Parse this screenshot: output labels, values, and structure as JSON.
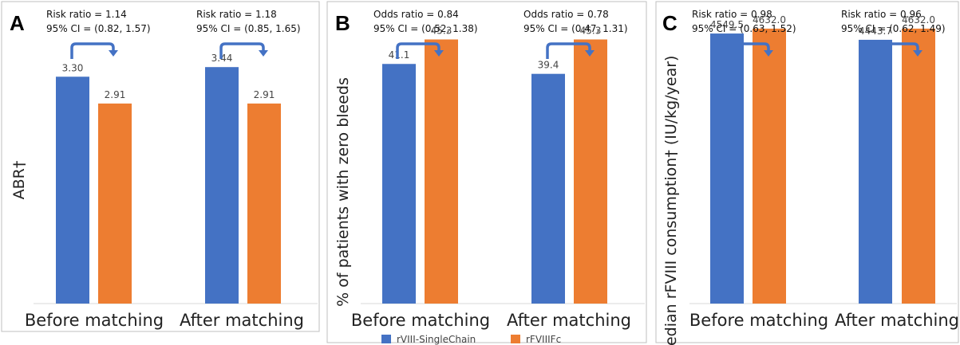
{
  "colors": {
    "series1": "#4472c4",
    "series2": "#ed7d31",
    "arrow": "#4472c4"
  },
  "legend": {
    "placement": "bottom-center",
    "items": [
      {
        "label": "rVIII-SingleChain",
        "color": "#4472c4"
      },
      {
        "label": "rFVIIIFc",
        "color": "#ed7d31"
      }
    ]
  },
  "chart_data": [
    {
      "panel": "A",
      "type": "bar",
      "ylabel": "ABR†",
      "categories": [
        "Before matching",
        "After matching"
      ],
      "ylim": [
        0,
        4.3
      ],
      "series": [
        {
          "name": "rVIII-SingleChain",
          "values": [
            3.3,
            3.44
          ],
          "labels": [
            "3.30",
            "3.44"
          ]
        },
        {
          "name": "rFVIIIFc",
          "values": [
            2.91,
            2.91
          ],
          "labels": [
            "2.91",
            "2.91"
          ]
        }
      ],
      "annotations": [
        {
          "line1": "Risk ratio = 1.14",
          "line2": "95% CI = (0.82, 1.57)"
        },
        {
          "line1": "Risk ratio = 1.18",
          "line2": "95% CI = (0.85, 1.65)"
        }
      ]
    },
    {
      "panel": "B",
      "type": "bar",
      "ylabel": "% of patients with zero bleeds",
      "categories": [
        "Before matching",
        "After matching"
      ],
      "ylim": [
        0,
        50.7
      ],
      "series": [
        {
          "name": "rVIII-SingleChain",
          "values": [
            41.1,
            39.4
          ],
          "labels": [
            "41.1",
            "39.4"
          ]
        },
        {
          "name": "rFVIIIFc",
          "values": [
            45.3,
            45.3
          ],
          "labels": [
            "45.3",
            "45.3"
          ]
        }
      ],
      "annotations": [
        {
          "line1": "Odds ratio = 0.84",
          "line2": "95% CI = (0.52, 1.38)"
        },
        {
          "line1": "Odds ratio = 0.78",
          "line2": "95% CI = (0.47, 1.31)"
        }
      ]
    },
    {
      "panel": "C",
      "type": "bar",
      "ylabel": "Median rFVIII consumption† (IU/kg/year)",
      "categories": [
        "Before matching",
        "After matching"
      ],
      "ylim": [
        0,
        4980
      ],
      "series": [
        {
          "name": "rVIII-SingleChain",
          "values": [
            4549.5,
            4443.7
          ],
          "labels": [
            "4549.5",
            "4443.7"
          ]
        },
        {
          "name": "rFVIIIFc",
          "values": [
            4632.0,
            4632.0
          ],
          "labels": [
            "4632.0",
            "4632.0"
          ]
        }
      ],
      "annotations": [
        {
          "line1": "Risk ratio = 0.98",
          "line2": "95% CI = (0.63, 1.52)"
        },
        {
          "line1": "Risk ratio = 0.96",
          "line2": "95% CI = (0.62, 1.49)"
        }
      ]
    }
  ]
}
